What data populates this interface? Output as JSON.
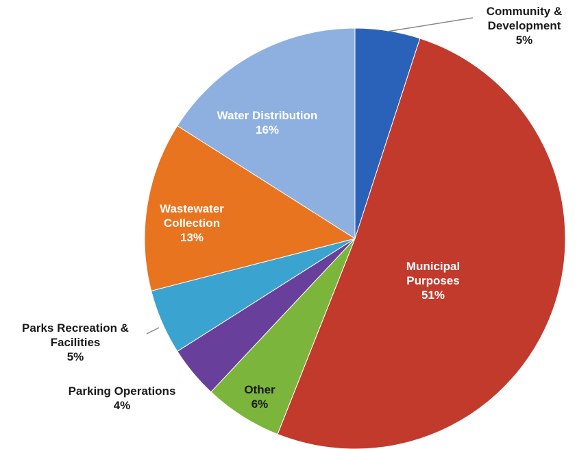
{
  "chart_data": {
    "type": "pie",
    "categories": [
      "Community & Development",
      "Municipal Purposes",
      "Other",
      "Parking Operations",
      "Parks Recreation & Facilities",
      "Wastewater Collection",
      "Water Distribution"
    ],
    "values": [
      5,
      51,
      6,
      4,
      5,
      13,
      16
    ],
    "value_labels": [
      "5%",
      "51%",
      "6%",
      "4%",
      "5%",
      "13%",
      "16%"
    ],
    "colors": [
      "#2b62b9",
      "#c23a2c",
      "#7cb53b",
      "#68409c",
      "#3ba3cf",
      "#e8741f",
      "#8db0e0"
    ]
  }
}
